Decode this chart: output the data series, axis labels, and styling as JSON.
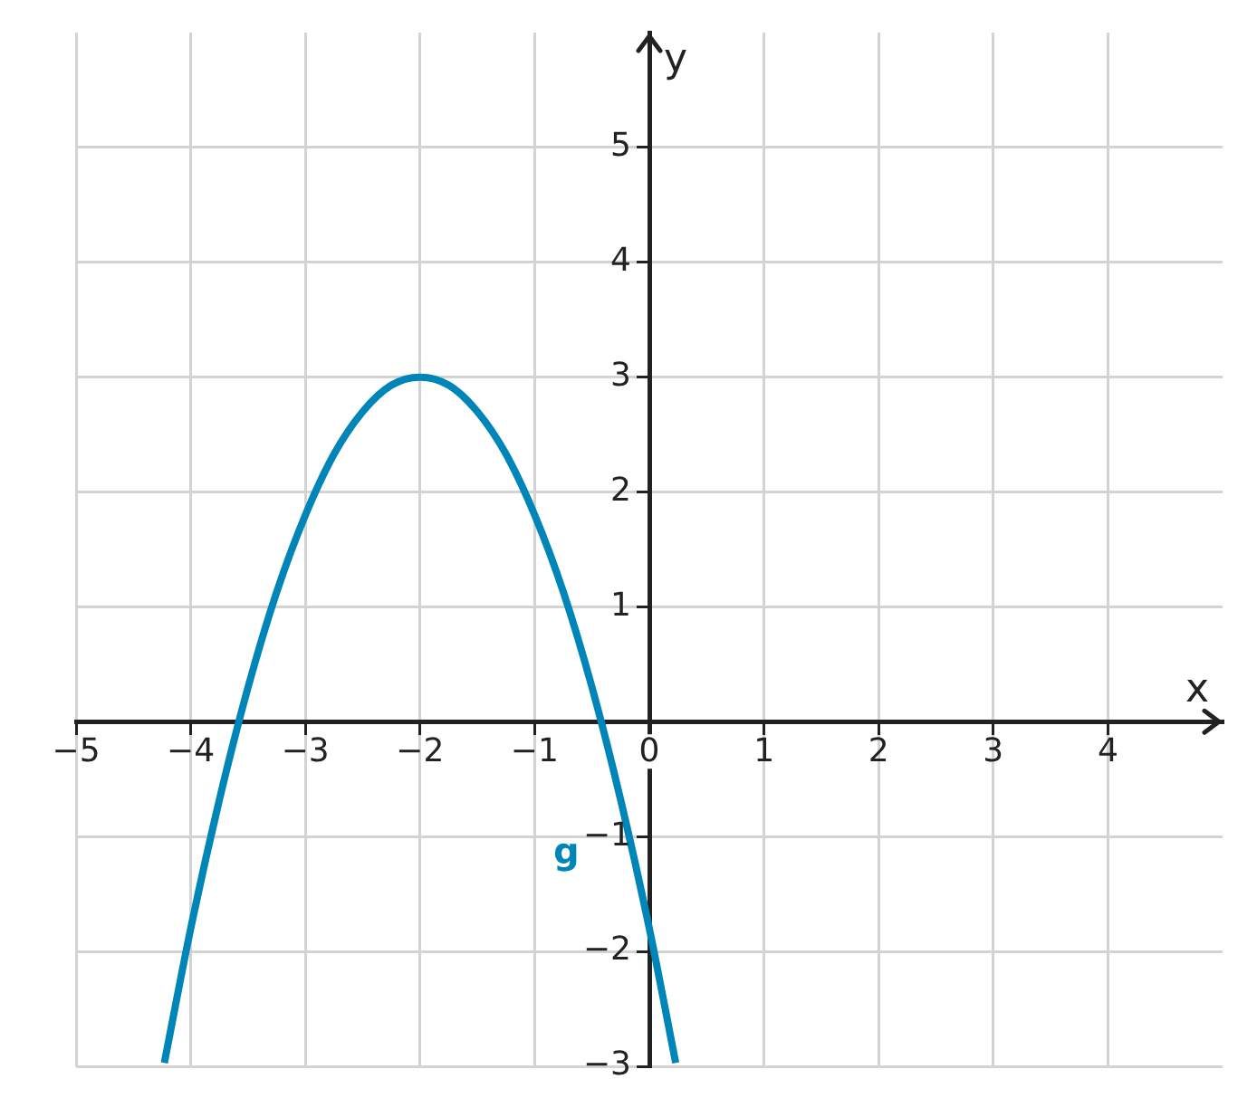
{
  "chart_data": {
    "type": "line",
    "xlabel": "x",
    "ylabel": "y",
    "xlim": [
      -5,
      5
    ],
    "ylim": [
      -3,
      6
    ],
    "xticks": [
      {
        "value": -5,
        "label": "−5"
      },
      {
        "value": -4,
        "label": "−4"
      },
      {
        "value": -3,
        "label": "−3"
      },
      {
        "value": -2,
        "label": "−2"
      },
      {
        "value": -1,
        "label": "−1"
      },
      0,
      1,
      2,
      3,
      4
    ],
    "yticks": [
      {
        "value": -3,
        "label": "−3"
      },
      {
        "value": -2,
        "label": "−2"
      },
      {
        "value": -1,
        "label": "−1"
      },
      {
        "value": 0,
        "label": null
      },
      1,
      2,
      3,
      4,
      5
    ],
    "grid": true,
    "legend": false,
    "marker": "none",
    "line_style": "solid",
    "series": [
      {
        "name": "g",
        "color": "#0085b8",
        "x": [
          -4.23,
          -4,
          -3.75,
          -3.5,
          -3.25,
          -3,
          -2.75,
          -2.5,
          -2.25,
          -2,
          -1.75,
          -1.5,
          -1.25,
          -1,
          -0.75,
          -0.5,
          -0.25,
          0,
          0.23
        ],
        "values": [
          -2.97,
          -1.8,
          -0.68,
          0.3,
          1.13,
          1.8,
          2.33,
          2.7,
          2.93,
          3,
          2.93,
          2.7,
          2.33,
          1.8,
          1.13,
          0.3,
          -0.68,
          -1.8,
          -2.97
        ]
      }
    ]
  }
}
